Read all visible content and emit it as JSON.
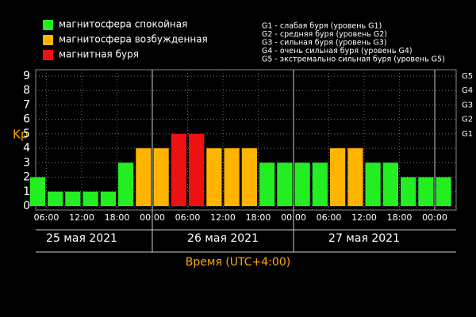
{
  "chart_data": {
    "type": "bar",
    "legend": [
      {
        "label": "магнитосфера спокойная",
        "color": "#22ee22"
      },
      {
        "label": "магнитосфера возбужденная",
        "color": "#ffb400"
      },
      {
        "label": "магнитная буря",
        "color": "#ee1111"
      }
    ],
    "storm_levels": [
      "G1 - слабая буря (уровень G1)",
      "G2 - средняя буря (уровень G2)",
      "G3 - сильная буря (уровень G3)",
      "G4 - очень сильная буря (уровень G4)",
      "G5 - экстремально сильная буря (уровень G5)"
    ],
    "ylabel": "Kp",
    "xlabel": "Время (UTC+4:00)",
    "categories": [
      null,
      null,
      null,
      null,
      null,
      null,
      null,
      null,
      null,
      null,
      null,
      null,
      null,
      null,
      null,
      null,
      null,
      null,
      null,
      null,
      null,
      null,
      null,
      null
    ],
    "values": [
      2,
      1,
      1,
      1,
      1,
      3,
      4,
      4,
      5,
      5,
      4,
      4,
      4,
      3,
      3,
      3,
      3,
      4,
      4,
      3,
      3,
      2,
      2,
      2
    ],
    "colors": [
      "#22ee22",
      "#22ee22",
      "#22ee22",
      "#22ee22",
      "#22ee22",
      "#22ee22",
      "#ffb400",
      "#ffb400",
      "#ee1111",
      "#ee1111",
      "#ffb400",
      "#ffb400",
      "#ffb400",
      "#22ee22",
      "#22ee22",
      "#22ee22",
      "#22ee22",
      "#ffb400",
      "#ffb400",
      "#22ee22",
      "#22ee22",
      "#22ee22",
      "#22ee22",
      "#22ee22"
    ],
    "xtick_labels": [
      "06:00",
      "12:00",
      "18:00",
      "00:00",
      "06:00",
      "12:00",
      "18:00",
      "00:00",
      "06:00",
      "12:00",
      "18:00",
      "00:00"
    ],
    "days": [
      "25 мая 2021",
      "26 мая 2021",
      "27 мая 2021"
    ],
    "ylim": [
      0,
      9
    ],
    "yticks": [
      0,
      1,
      2,
      3,
      4,
      5,
      6,
      7,
      8,
      9
    ],
    "y2ticks": [
      {
        "value": 5,
        "label": "G1"
      },
      {
        "value": 6,
        "label": "G2"
      },
      {
        "value": 7,
        "label": "G3"
      },
      {
        "value": 8,
        "label": "G4"
      },
      {
        "value": 9,
        "label": "G5"
      }
    ],
    "grid": true
  }
}
